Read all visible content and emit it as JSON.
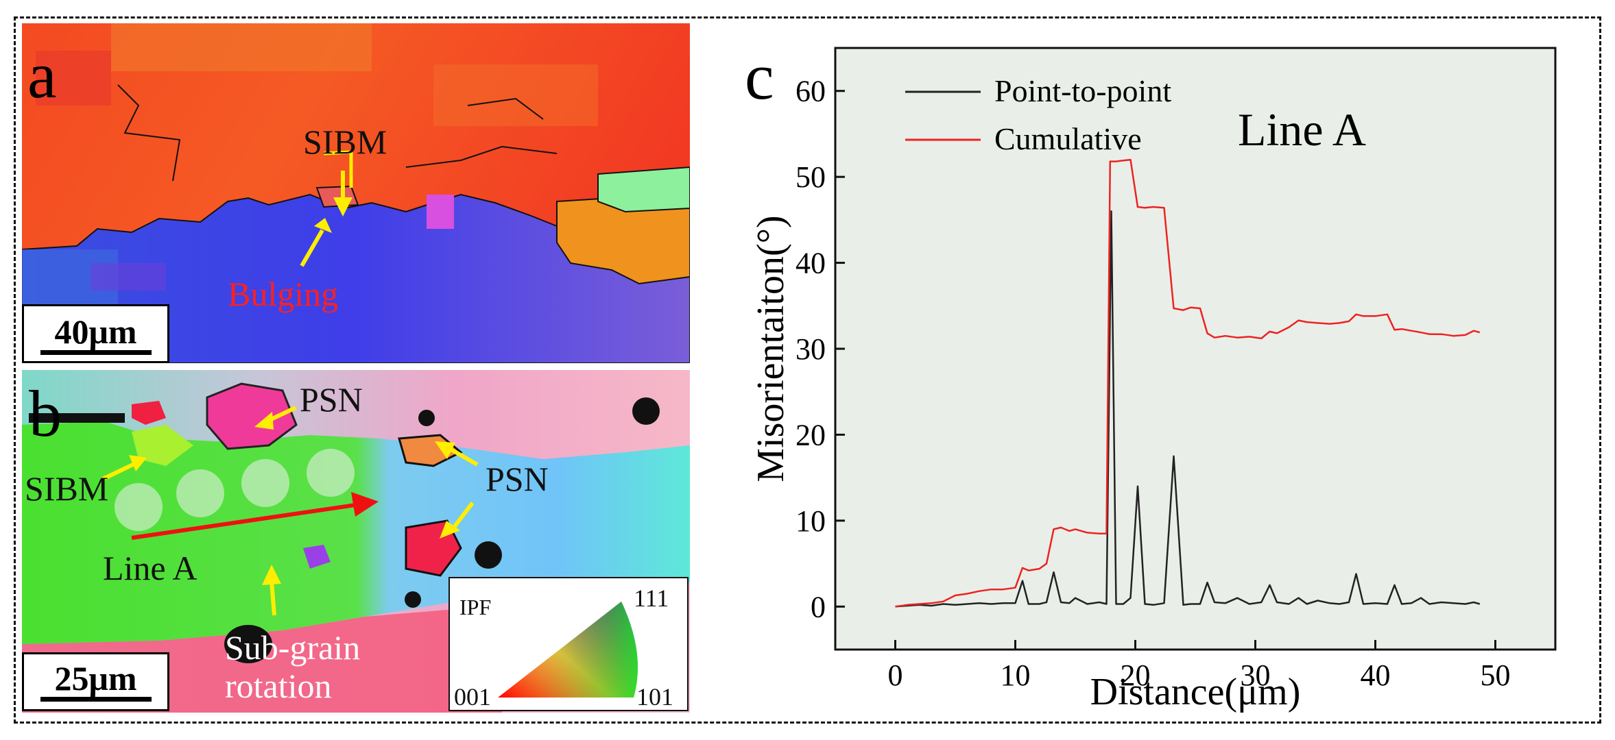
{
  "panel_a": {
    "letter": "a",
    "labels": {
      "sibm": "SIBM",
      "bulging": "Bulging"
    },
    "scale_bar": "40μm"
  },
  "panel_b": {
    "letter": "b",
    "labels": {
      "psn_top": "PSN",
      "psn_right": "PSN",
      "sibm": "SIBM",
      "line_a": "Line A",
      "sub_grain_1": "Sub-grain",
      "sub_grain_2": "rotation"
    },
    "scale_bar": "25μm",
    "ipf_legend": {
      "title": "IPF",
      "corner_111": "111",
      "corner_001": "001",
      "corner_101": "101"
    }
  },
  "colors": {
    "annotation_arrow": "#ffee00",
    "line_a": "#ee1111",
    "bulging_text": "#ff2020",
    "cumulative": "#ee2222",
    "point_to_point": "#222222",
    "plot_bg": "#e9efe8"
  },
  "chart_data": {
    "type": "line",
    "panel_letter": "c",
    "annotation": "Line A",
    "xlabel": "Distance(μm)",
    "ylabel": "Misorientaiton(°)",
    "xlim": [
      -5,
      55
    ],
    "ylim": [
      -5,
      65
    ],
    "xticks": [
      0,
      10,
      20,
      30,
      40,
      50
    ],
    "yticks": [
      0,
      10,
      20,
      30,
      40,
      50,
      60
    ],
    "legend": [
      "Point-to-point",
      "Cumulative"
    ],
    "series": [
      {
        "name": "Point-to-point",
        "color": "#222222",
        "x": [
          0,
          1,
          2,
          3,
          4,
          5,
          6,
          7,
          8,
          9,
          10,
          10.6,
          11.1,
          12,
          12.6,
          13.2,
          13.8,
          14.5,
          15,
          16,
          17,
          17.6,
          18,
          18.4,
          19,
          19.6,
          20.2,
          20.8,
          21.5,
          22.4,
          23.2,
          24,
          24.6,
          25.4,
          26,
          26.6,
          27.5,
          28.5,
          29.5,
          30.5,
          31.2,
          31.8,
          32.8,
          33.6,
          34.3,
          35.2,
          36.2,
          37,
          37.8,
          38.4,
          39,
          40,
          41,
          41.6,
          42.2,
          43,
          43.8,
          44.5,
          45.5,
          46.5,
          47.5,
          48.2,
          48.7
        ],
        "y": [
          0,
          0.1,
          0.2,
          0.1,
          0.3,
          0.2,
          0.3,
          0.4,
          0.3,
          0.4,
          0.4,
          3,
          0.3,
          0.3,
          0.5,
          4,
          0.5,
          0.4,
          1,
          0.3,
          0.5,
          0.3,
          46,
          0.3,
          0.3,
          1,
          14,
          0.3,
          0.2,
          0.4,
          17.5,
          0.2,
          0.3,
          0.3,
          2.8,
          0.5,
          0.4,
          1,
          0.3,
          0.5,
          2.5,
          0.5,
          0.3,
          1,
          0.3,
          0.7,
          0.4,
          0.3,
          0.5,
          3.8,
          0.3,
          0.4,
          0.3,
          2.5,
          0.3,
          0.4,
          1,
          0.3,
          0.5,
          0.4,
          0.3,
          0.5,
          0.3
        ]
      },
      {
        "name": "Cumulative",
        "color": "#ee2222",
        "x": [
          0,
          1,
          2,
          3,
          4,
          5,
          6,
          7,
          8,
          9,
          10,
          10.6,
          11.1,
          12,
          12.6,
          13.2,
          13.8,
          14.5,
          15,
          16,
          17,
          17.6,
          17.9,
          18.4,
          19,
          19.6,
          20.2,
          20.8,
          21.5,
          22.4,
          23.2,
          24,
          24.6,
          25.4,
          26,
          26.6,
          27.5,
          28.5,
          29.5,
          30.5,
          31.2,
          31.8,
          32.8,
          33.6,
          34.3,
          35.2,
          36.2,
          37,
          37.8,
          38.4,
          39,
          40,
          41,
          41.6,
          42.2,
          43,
          43.8,
          44.5,
          45.5,
          46.5,
          47.5,
          48.2,
          48.7
        ],
        "y": [
          0,
          0.2,
          0.3,
          0.4,
          0.6,
          1.3,
          1.5,
          1.8,
          2,
          2,
          2.2,
          4.5,
          4.2,
          4.4,
          5,
          9,
          9.2,
          8.8,
          9,
          8.6,
          8.5,
          8.5,
          51.8,
          51.8,
          51.9,
          52,
          46.5,
          46.4,
          46.5,
          46.4,
          34.7,
          34.5,
          34.8,
          34.7,
          31.8,
          31.3,
          31.5,
          31.3,
          31.4,
          31.2,
          32,
          31.8,
          32.5,
          33.3,
          33.1,
          33,
          32.9,
          33,
          33.2,
          34,
          33.8,
          33.8,
          34,
          32.2,
          32.3,
          32.1,
          31.9,
          31.7,
          31.7,
          31.5,
          31.6,
          32.1,
          31.9
        ]
      }
    ]
  }
}
